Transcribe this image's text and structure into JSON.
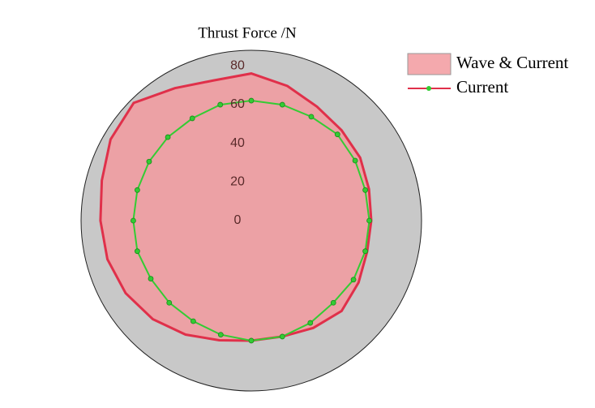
{
  "chart_data": {
    "type": "polar",
    "title": "Thrust Force /N",
    "theta": [
      0,
      15,
      30,
      45,
      60,
      75,
      90,
      105,
      120,
      135,
      150,
      165,
      180,
      195,
      210,
      225,
      240,
      255,
      270,
      285,
      300,
      315,
      330,
      345
    ],
    "series": [
      {
        "name": "Wave & Current",
        "color": "#e0304a",
        "fill": "#f29a9f",
        "values": [
          62,
          63,
          65,
          66,
          68,
          72,
          76,
          75,
          79,
          86,
          84,
          80,
          78,
          77,
          75,
          72,
          68,
          64,
          62,
          62,
          64,
          66,
          64,
          62
        ]
      },
      {
        "name": "Current",
        "color": "#33cc33",
        "values": [
          61,
          61,
          62,
          63,
          62,
          62,
          62,
          62,
          61,
          61,
          61,
          61,
          61,
          61,
          60,
          60,
          60,
          61,
          62,
          62,
          61,
          60,
          61,
          61
        ]
      }
    ],
    "rlim": [
      0,
      88
    ],
    "rticks": [
      0,
      20,
      40,
      60,
      80
    ]
  }
}
